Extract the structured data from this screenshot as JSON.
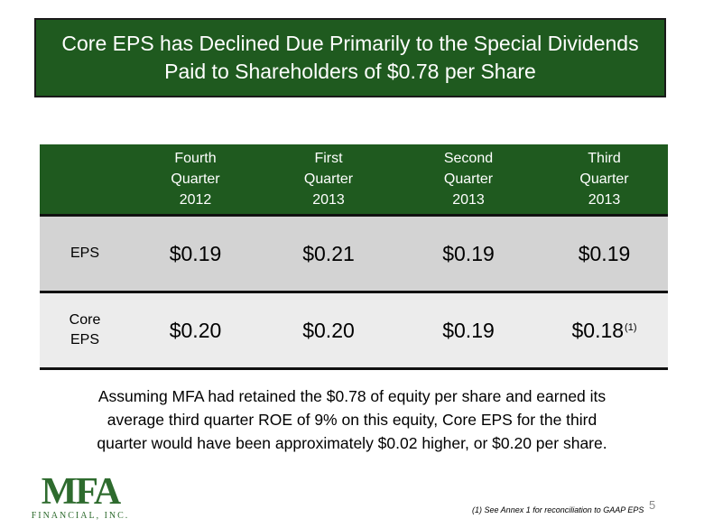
{
  "title": {
    "line1": "Core EPS has Declined Due Primarily to the Special Dividends",
    "line2": "Paid to Shareholders of $0.78 per Share"
  },
  "table": {
    "headers": [
      {
        "l1": "Fourth",
        "l2": "Quarter",
        "l3": "2012"
      },
      {
        "l1": "First",
        "l2": "Quarter",
        "l3": "2013"
      },
      {
        "l1": "Second",
        "l2": "Quarter",
        "l3": "2013"
      },
      {
        "l1": "Third",
        "l2": "Quarter",
        "l3": "2013"
      }
    ],
    "rows": [
      {
        "label_l1": "EPS",
        "label_l2": "",
        "values": [
          "$0.19",
          "$0.21",
          "$0.19",
          "$0.19"
        ],
        "last_note": ""
      },
      {
        "label_l1": "Core",
        "label_l2": "EPS",
        "values": [
          "$0.20",
          "$0.20",
          "$0.19",
          "$0.18"
        ],
        "last_note": "(1)"
      }
    ]
  },
  "body": {
    "line1": "Assuming MFA had retained the $0.78 of equity per share and earned its",
    "line2": "average third quarter ROE of 9% on this equity, Core EPS for the third",
    "line3": "quarter would have been approximately $0.02 higher, or $0.20 per share."
  },
  "logo": {
    "mark": "MFA",
    "sub": "FINANCIAL, INC."
  },
  "footnote": "(1) See Annex 1 for reconciliation to GAAP EPS",
  "page_number": "5",
  "colors": {
    "header_green": "#1f5a1f",
    "row_gray": "#d3d3d3",
    "row_light": "#ececec",
    "logo_green": "#2e6b2e"
  }
}
